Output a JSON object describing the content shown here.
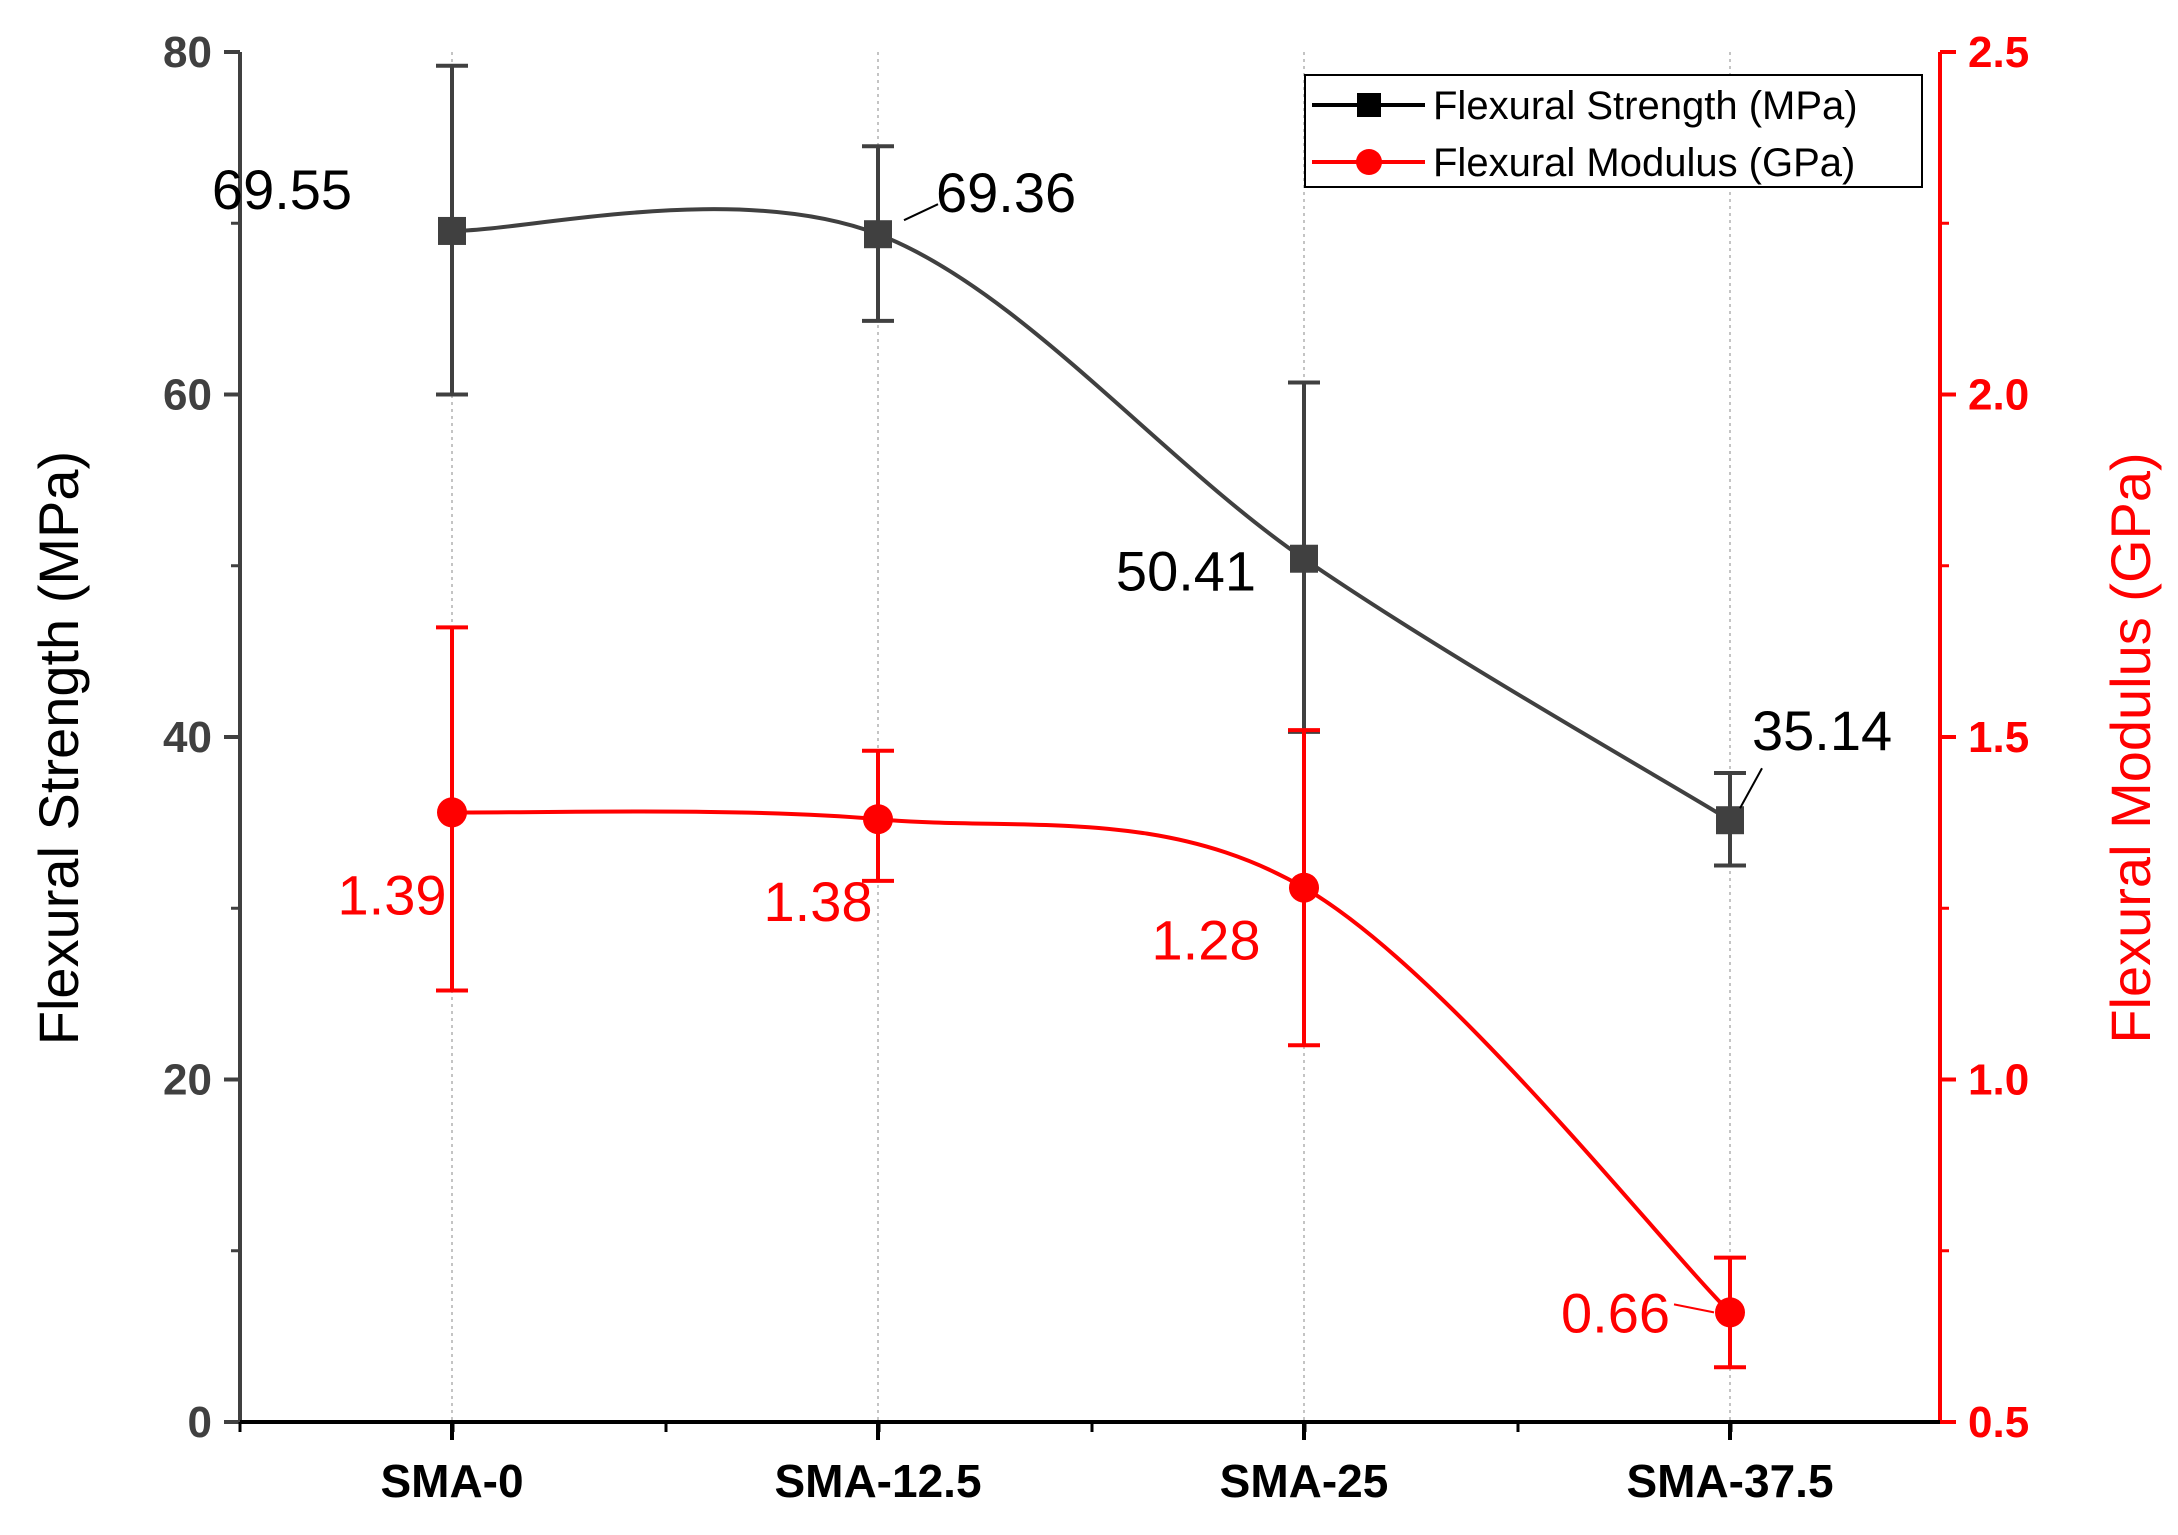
{
  "chart_data": {
    "type": "line",
    "categories": [
      "SMA-0",
      "SMA-12.5",
      "SMA-25",
      "SMA-37.5"
    ],
    "series": [
      {
        "name": "Flexural Strength (MPa)",
        "axis": "left",
        "color": "#404040",
        "marker": "square",
        "values": [
          69.55,
          69.36,
          50.41,
          35.14
        ],
        "error_low": [
          60.0,
          64.3,
          40.3,
          32.5
        ],
        "error_high": [
          79.2,
          74.5,
          60.7,
          37.9
        ],
        "labels": [
          "69.55",
          "69.36",
          "50.41",
          "35.14"
        ]
      },
      {
        "name": "Flexural Modulus (GPa)",
        "axis": "right",
        "color": "#ff0000",
        "marker": "circle",
        "values": [
          1.39,
          1.38,
          1.28,
          0.66
        ],
        "error_low": [
          1.13,
          1.29,
          1.05,
          0.58
        ],
        "error_high": [
          1.66,
          1.48,
          1.51,
          0.74
        ],
        "labels": [
          "1.39",
          "1.38",
          "1.28",
          "0.66"
        ]
      }
    ],
    "y_left": {
      "label": "Flexural Strength (MPa)",
      "range": [
        0,
        80
      ],
      "ticks": [
        "0",
        "20",
        "40",
        "60",
        "80"
      ],
      "color": "#404040"
    },
    "y_right": {
      "label": "Flexural Modulus (GPa)",
      "range": [
        0.5,
        2.5
      ],
      "ticks": [
        "0.5",
        "1.0",
        "1.5",
        "2.0",
        "2.5"
      ],
      "color": "#ff0000"
    },
    "xlabel": "",
    "legend": "top-right",
    "grid": "vertical dotted"
  }
}
